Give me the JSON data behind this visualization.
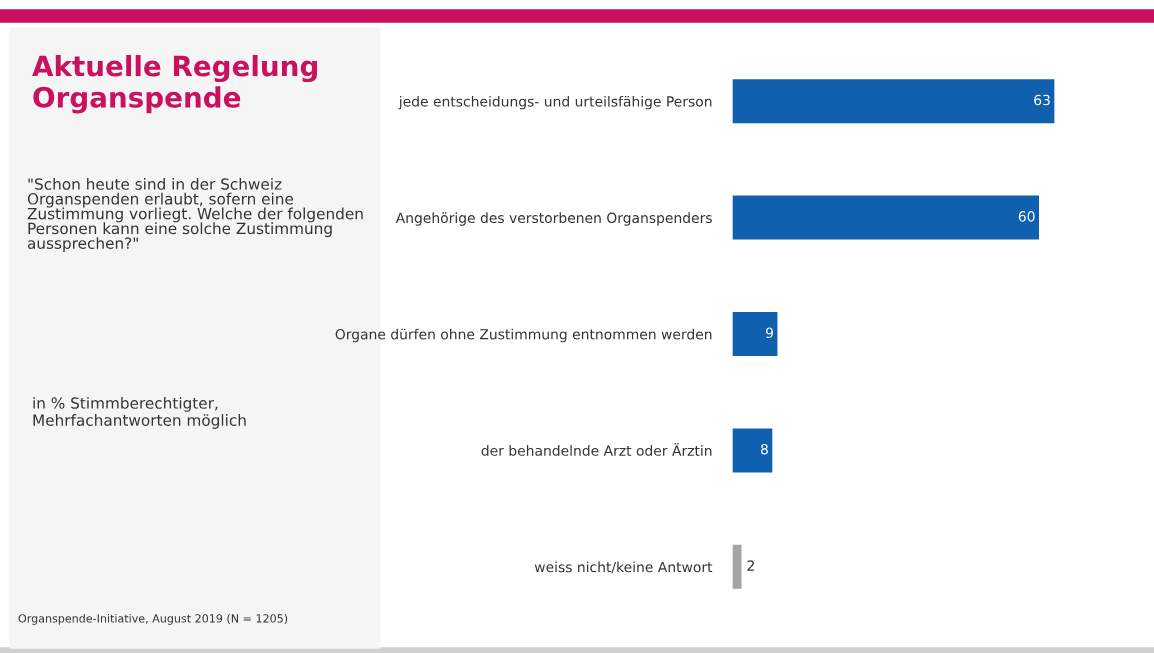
{
  "chart_data": {
    "type": "bar",
    "orientation": "horizontal",
    "title": "Aktuelle Regelung Organspende",
    "subtitle": "\"Schon heute sind in der Schweiz Organspenden erlaubt, sofern eine Zustimmung vorliegt. Welche der folgenden Personen kann eine solche Zustimmung aussprechen?\"",
    "annotations": [
      "in % Stimmberechtigter, Mehrfachantworten möglich",
      "Organspende-Initiative, August 2019 (N = 1205)"
    ],
    "categories": [
      "jede entscheidungs- und urteilsfähige Person",
      "Angehörige des verstorbenen Organspenders",
      "Organe dürfen ohne Zustimmung entnommen werden",
      "der behandelnde Arzt oder Ärztin",
      "weiss nicht/keine Antwort"
    ],
    "values": [
      63,
      60,
      9,
      8,
      2
    ],
    "colors": [
      "#0f60ae",
      "#0f60ae",
      "#0f60ae",
      "#0f60ae",
      "#a5a5a5"
    ],
    "data_labels": true,
    "tick_labels": false,
    "grid": false,
    "legend": false
  }
}
